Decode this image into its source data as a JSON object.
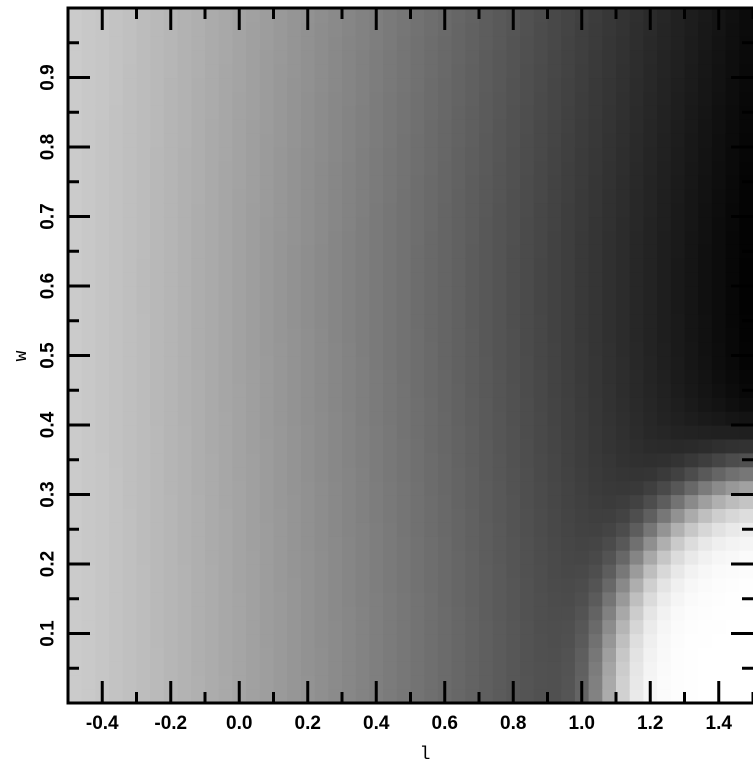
{
  "chart_data": {
    "type": "heatmap",
    "title": "",
    "xlabel": "l",
    "ylabel": "w",
    "xlim": [
      -0.5,
      1.5
    ],
    "ylim": [
      0.0,
      1.0
    ],
    "x_ticks": [
      -0.4,
      -0.2,
      0.0,
      0.2,
      0.4,
      0.6,
      0.8,
      1.0,
      1.2,
      1.4
    ],
    "x_tick_labels": [
      "-0.4",
      "-0.2",
      "0.0",
      "0.2",
      "0.4",
      "0.6",
      "0.8",
      "1.0",
      "1.2",
      "1.4"
    ],
    "y_ticks": [
      0.1,
      0.2,
      0.3,
      0.4,
      0.5,
      0.6,
      0.7,
      0.8,
      0.9
    ],
    "y_tick_labels": [
      "0.1",
      "0.2",
      "0.3",
      "0.4",
      "0.5",
      "0.6",
      "0.7",
      "0.8",
      "0.9"
    ],
    "colormap": "grayscale",
    "grid": false,
    "legend": "none",
    "grid_resolution": {
      "nx": 50,
      "ny": 50
    },
    "intensity_model": {
      "description": "gray level 0..1 (1 = white): smooth left-to-right darkening, darkest band near l=1.4 w=0.5-0.7, bright white region in lower-right corner",
      "base_left": 0.8,
      "base_right": 0.05,
      "bright_corner_center": [
        1.55,
        0.0
      ]
    }
  }
}
